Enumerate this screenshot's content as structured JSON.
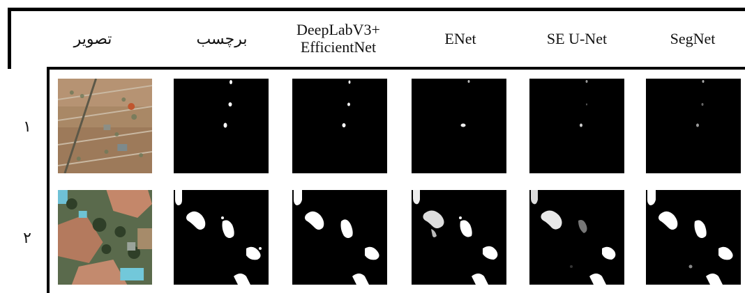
{
  "table": {
    "headers": {
      "image": "تصویر",
      "label": "برچسب",
      "deeplab_line1": "DeepLabV3+",
      "deeplab_line2": "EfficientNet",
      "enet": "ENet",
      "seunet": "SE U-Net",
      "segnet": "SegNet"
    },
    "rows": [
      {
        "label": "۱"
      },
      {
        "label": "۲"
      }
    ]
  }
}
